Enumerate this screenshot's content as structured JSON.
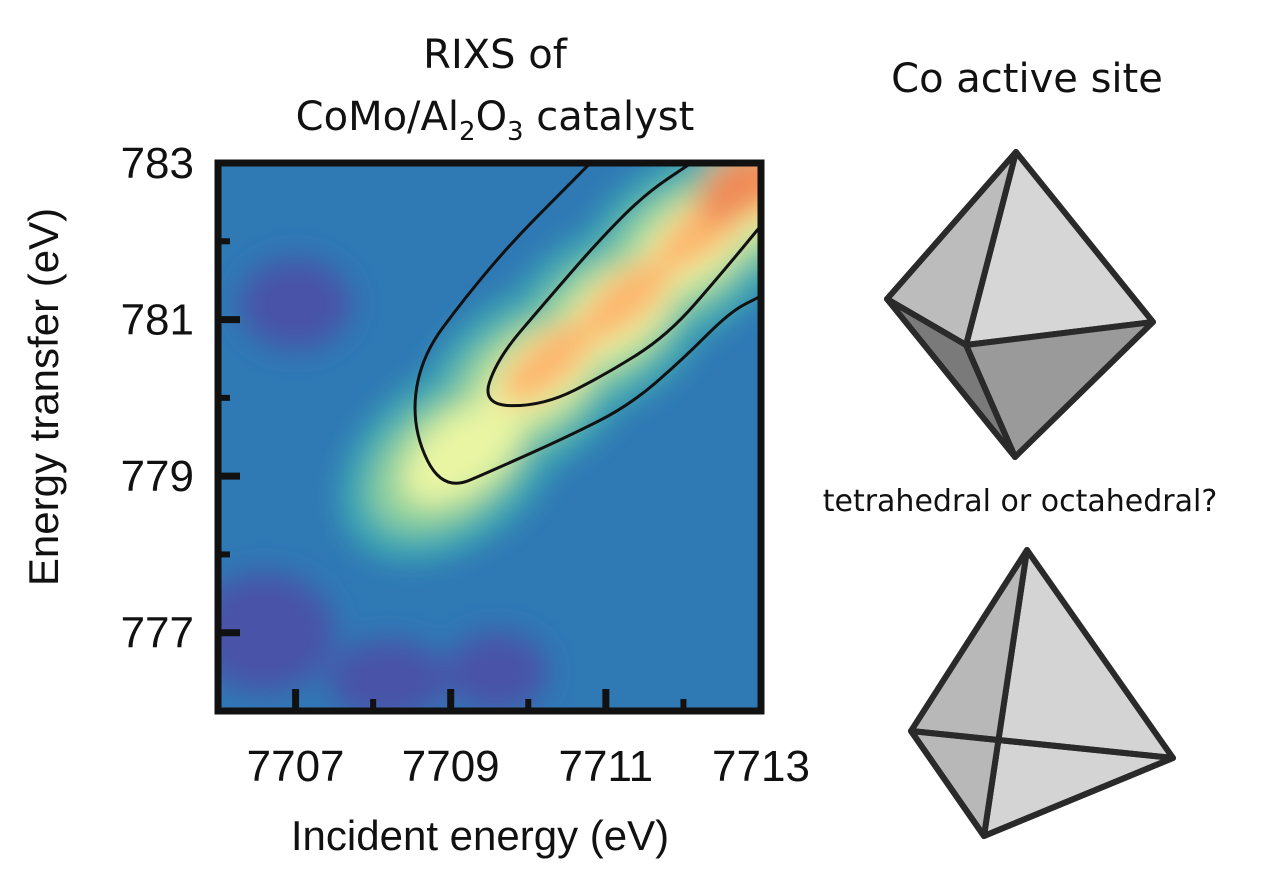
{
  "chart_data": {
    "type": "heatmap",
    "title_line1": "RIXS of",
    "title_line2": {
      "prefix": "CoMo/Al",
      "sub1": "2",
      "mid": "O",
      "sub2": "3",
      "suffix": " catalyst",
      "full": "CoMo/Al2O3 catalyst"
    },
    "xlabel": "Incident energy (eV)",
    "ylabel": "Energy transfer (eV)",
    "xlim": [
      7706,
      7713
    ],
    "ylim": [
      776,
      783
    ],
    "xticks": [
      7707,
      7709,
      7711,
      7713
    ],
    "xtick_labels": [
      "7707",
      "7709",
      "7711",
      "7713"
    ],
    "xminor": [
      7708,
      7710,
      7712
    ],
    "yticks": [
      777,
      779,
      781,
      783
    ],
    "ytick_labels": [
      "777",
      "779",
      "781",
      "783"
    ],
    "yminor": [
      778,
      780,
      782
    ],
    "intensity_ridge": {
      "description_points": [
        [
          7709.0,
          779.2
        ],
        [
          7710.0,
          780.2
        ],
        [
          7711.0,
          781.0
        ],
        [
          7712.0,
          781.9
        ],
        [
          7713.0,
          782.6
        ]
      ],
      "peak": [
        7712.7,
        782.7
      ]
    },
    "contours": [
      {
        "name": "outer",
        "points": [
          [
            7710.8,
            783.0
          ],
          [
            7710.4,
            782.6
          ],
          [
            7709.8,
            782.0
          ],
          [
            7709.2,
            781.3
          ],
          [
            7708.6,
            780.5
          ],
          [
            7708.5,
            779.6
          ],
          [
            7708.9,
            778.8
          ],
          [
            7709.6,
            779.1
          ],
          [
            7710.5,
            779.5
          ],
          [
            7711.3,
            779.9
          ],
          [
            7712.0,
            780.5
          ],
          [
            7712.6,
            781.1
          ],
          [
            7713.0,
            781.3
          ]
        ]
      },
      {
        "name": "inner",
        "points": [
          [
            7712.1,
            783.0
          ],
          [
            7711.5,
            782.6
          ],
          [
            7710.9,
            782.0
          ],
          [
            7710.2,
            781.2
          ],
          [
            7709.6,
            780.5
          ],
          [
            7709.4,
            779.9
          ],
          [
            7710.2,
            779.9
          ],
          [
            7711.0,
            780.3
          ],
          [
            7711.8,
            780.8
          ],
          [
            7712.5,
            781.6
          ],
          [
            7713.0,
            782.2
          ]
        ]
      }
    ],
    "colormap": [
      "#4a53a8",
      "#2f79b5",
      "#3ea8b1",
      "#8fd19e",
      "#e9f5a3",
      "#fdb56c",
      "#f08a56"
    ]
  },
  "right_panel": {
    "title": "Co active site",
    "question": "tetrahedral or octahedral?",
    "octahedron_colors": [
      "#d6d6d6",
      "#bcbcbc",
      "#9a9a9a",
      "#7a7a7a"
    ],
    "tetrahedron_colors": [
      "#d4d4d4",
      "#b8b8b8",
      "#9c9c9c"
    ]
  }
}
